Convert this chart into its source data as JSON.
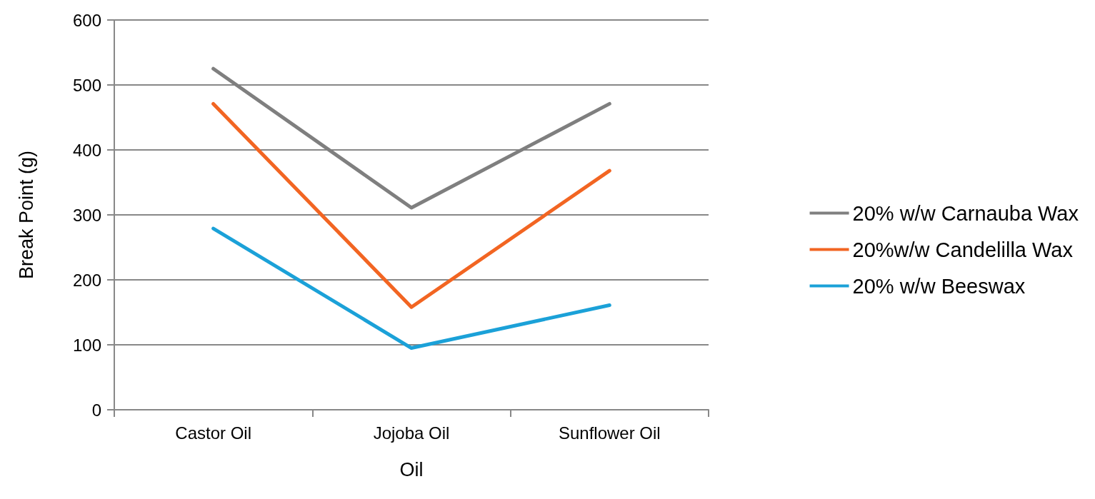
{
  "chart_data": {
    "type": "line",
    "xlabel": "Oil",
    "ylabel": "Break Point (g)",
    "categories": [
      "Castor Oil",
      "Jojoba Oil",
      "Sunflower Oil"
    ],
    "series": [
      {
        "name": "20% w/w Carnauba Wax",
        "color": "#7f7f7f",
        "values": [
          525,
          311,
          471
        ]
      },
      {
        "name": "20%w/w Candelilla Wax",
        "color": "#f26522",
        "values": [
          471,
          158,
          368
        ]
      },
      {
        "name": "20% w/w Beeswax",
        "color": "#1ba1d8",
        "values": [
          279,
          95,
          161
        ]
      }
    ],
    "ylim": [
      0,
      600
    ],
    "yticks": [
      0,
      100,
      200,
      300,
      400,
      500,
      600
    ],
    "grid": "y",
    "legend": "right",
    "marker": "none"
  }
}
